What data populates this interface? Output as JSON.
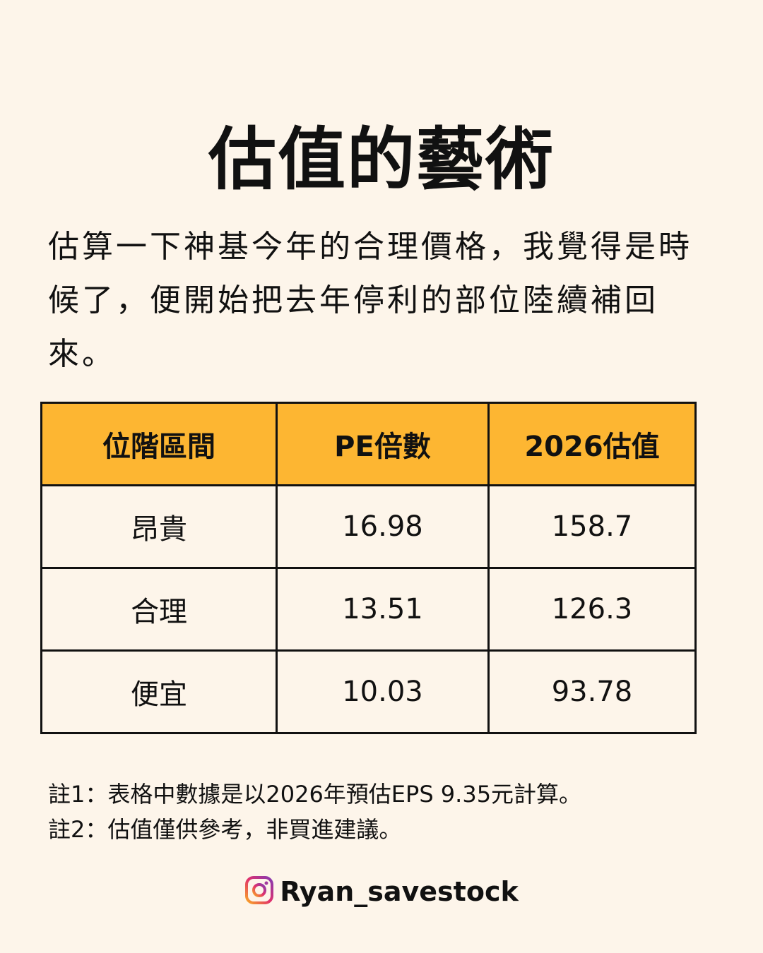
{
  "title": "估值的藝術",
  "intro": "估算一下神基今年的合理價格，我覺得是時候了，便開始把去年停利的部位陸續補回來。",
  "colors": {
    "background": "#fdf5ea",
    "header": "#fdb632",
    "border": "#111111"
  },
  "table": {
    "headers": [
      "位階區間",
      "PE倍數",
      "2026估值"
    ],
    "rows": [
      [
        "昂貴",
        "16.98",
        "158.7"
      ],
      [
        "合理",
        "13.51",
        "126.3"
      ],
      [
        "便宜",
        "10.03",
        "93.78"
      ]
    ]
  },
  "notes": [
    "註1：表格中數據是以2026年預估EPS 9.35元計算。",
    "註2：估值僅供參考，非買進建議。"
  ],
  "footer": {
    "icon": "instagram-icon",
    "handle": "Ryan_savestock"
  }
}
